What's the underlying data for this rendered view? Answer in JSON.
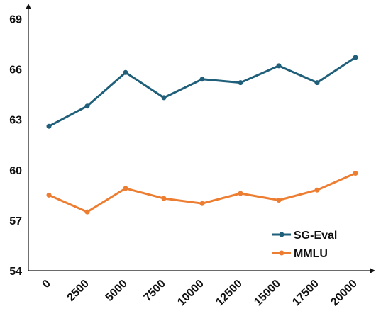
{
  "chart_data": {
    "type": "line",
    "title": "",
    "xlabel": "",
    "ylabel": "",
    "x": [
      0,
      2500,
      5000,
      7500,
      10000,
      12500,
      15000,
      17500,
      20000
    ],
    "x_tick_labels": [
      "0",
      "2500",
      "5000",
      "7500",
      "10000",
      "12500",
      "15000",
      "17500",
      "20000"
    ],
    "y_ticks": [
      54,
      57,
      60,
      63,
      66,
      69
    ],
    "y_tick_labels": [
      "54",
      "57",
      "60",
      "63",
      "66",
      "69"
    ],
    "ylim": [
      54,
      70.5
    ],
    "grid": false,
    "legend_position": "bottom-right",
    "series": [
      {
        "name": "SG-Eval",
        "color": "#1f5f7a",
        "values": [
          62.6,
          63.8,
          65.8,
          64.3,
          65.4,
          65.2,
          66.2,
          65.2,
          66.7
        ]
      },
      {
        "name": "MMLU",
        "color": "#ed7d31",
        "values": [
          58.5,
          57.5,
          58.9,
          58.3,
          58.0,
          58.6,
          58.2,
          58.8,
          59.8
        ]
      }
    ]
  }
}
